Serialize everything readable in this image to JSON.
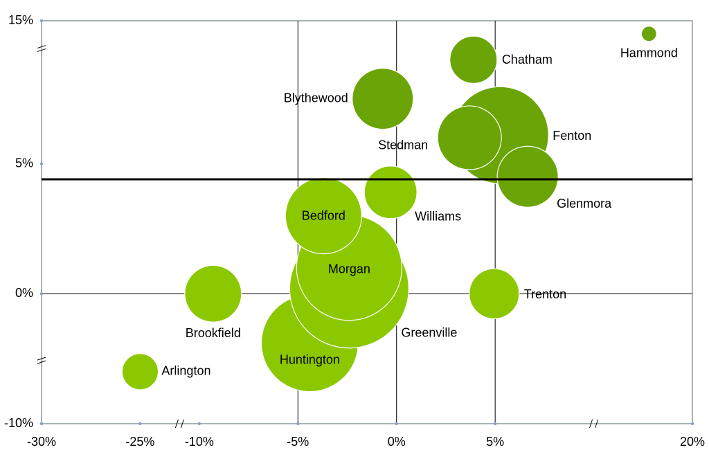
{
  "chart_data": {
    "type": "bubble",
    "categories": [
      "Arlington",
      "Brookfield",
      "Huntington",
      "Greenville",
      "Morgan",
      "Bedford",
      "Williams",
      "Blythewood",
      "Fenton",
      "Stedman",
      "Glenmora",
      "Chatham",
      "Trenton",
      "Hammond"
    ],
    "x": [
      -25,
      -9.3,
      -4.4,
      -2.4,
      -2.4,
      -3.7,
      -0.3,
      -0.7,
      5.25,
      3.7,
      6.65,
      3.9,
      4.95,
      17.8
    ],
    "values": [
      -8.0,
      0,
      -1.9,
      0.2,
      1.0,
      3.0,
      3.9,
      7.5,
      6.1,
      6.0,
      4.5,
      9.0,
      0,
      14.5
    ],
    "sizes": [
      6.8,
      16.8,
      49,
      74,
      57.8,
      30.3,
      14.4,
      19.4,
      49,
      21.2,
      19.4,
      11.6,
      13,
      1.2
    ],
    "colors": [
      "#8cc800",
      "#8cc800",
      "#8cc800",
      "#8cc800",
      "#8cc800",
      "#8cc800",
      "#8cc800",
      "#6aa406",
      "#6aa406",
      "#6aa406",
      "#6aa406",
      "#6aa406",
      "#8cc800",
      "#6aa406"
    ],
    "xlim": [
      -30,
      20
    ],
    "ylim": [
      -10,
      15
    ],
    "x_breaks": [
      [
        -23,
        -11
      ],
      [
        10,
        15
      ]
    ],
    "y_breaks": [
      [
        -7.5,
        -2.5
      ],
      [
        9.5,
        14
      ]
    ],
    "xticks": [
      {
        "value": -30,
        "label": "-30%"
      },
      {
        "value": -25,
        "label": "-25%"
      },
      {
        "value": -10,
        "label": "-10%"
      },
      {
        "value": -5,
        "label": "-5%"
      },
      {
        "value": 0,
        "label": "0%"
      },
      {
        "value": 5,
        "label": "5%"
      },
      {
        "value": 20,
        "label": "20%"
      }
    ],
    "yticks": [
      {
        "value": -10,
        "label": "-10%"
      },
      {
        "value": 0,
        "label": "0%"
      },
      {
        "value": 5,
        "label": "5%"
      },
      {
        "value": 15,
        "label": "15%"
      }
    ],
    "xgrid": [
      -5,
      0,
      5
    ],
    "ygrid": [
      0
    ],
    "reference_line": 4.4
  }
}
